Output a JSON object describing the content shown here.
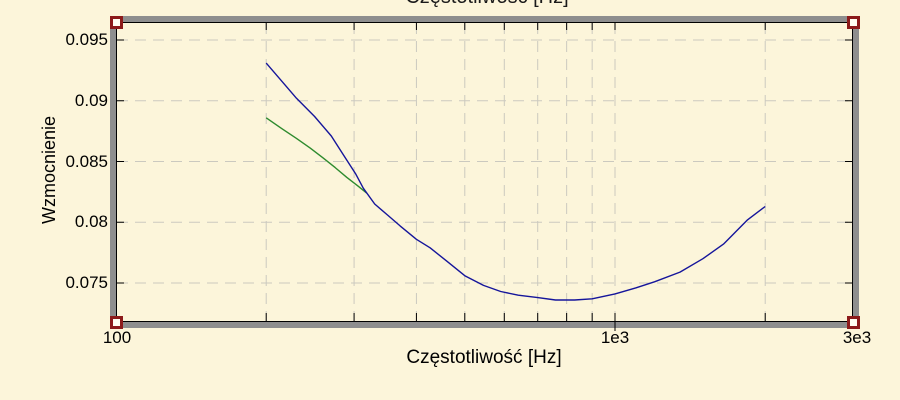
{
  "window": {
    "background_color": "#fcf5da",
    "top_clipped_axis_label": "Częstotliwość [Hz]"
  },
  "colors": {
    "curve_blue": "#15159b",
    "curve_green": "#2e8b2e",
    "gridline": "#cbc9bf",
    "axis": "#000000",
    "frame": "#8e8e8e",
    "handle": "#8c1a1a"
  },
  "chart_data": {
    "type": "line",
    "title": "",
    "xlabel": "Częstotliwość [Hz]",
    "ylabel": "Wzmocnienie",
    "x_scale": "log",
    "xlim": [
      100,
      3000
    ],
    "ylim": [
      0.0718,
      0.0965
    ],
    "grid": "dashed",
    "legend": "none",
    "x_ticks": [
      {
        "value": 100,
        "label": "100"
      },
      {
        "value": 1000,
        "label": "1e3"
      },
      {
        "value": 3000,
        "label": "3e3"
      }
    ],
    "y_ticks": [
      {
        "value": 0.095,
        "label": "0.095"
      },
      {
        "value": 0.09,
        "label": "0.09"
      },
      {
        "value": 0.085,
        "label": "0.085"
      },
      {
        "value": 0.08,
        "label": "0.08"
      },
      {
        "value": 0.075,
        "label": "0.075"
      }
    ],
    "x_gridlines_hz": [
      200,
      300,
      400,
      500,
      600,
      700,
      800,
      900,
      1000,
      2000
    ],
    "y_gridlines": [
      0.095,
      0.09,
      0.085,
      0.08,
      0.075
    ],
    "series": [
      {
        "name": "gain-curve-green",
        "color": "#2e8b2e",
        "x": [
          200,
          215,
          230,
          245,
          260,
          275,
          290,
          305,
          318
        ],
        "y": [
          0.0886,
          0.0877,
          0.0869,
          0.0861,
          0.0853,
          0.0845,
          0.0837,
          0.083,
          0.0824
        ]
      },
      {
        "name": "gain-curve-blue",
        "color": "#15159b",
        "x": [
          200,
          215,
          230,
          250,
          270,
          285,
          302,
          313,
          330,
          350,
          371,
          400,
          426,
          460,
          500,
          545,
          590,
          640,
          700,
          760,
          830,
          900,
          1000,
          1100,
          1200,
          1350,
          1500,
          1650,
          1844,
          2000
        ],
        "y": [
          0.0931,
          0.0916,
          0.0902,
          0.0887,
          0.0871,
          0.0856,
          0.084,
          0.0828,
          0.0815,
          0.0806,
          0.0797,
          0.0786,
          0.0779,
          0.0768,
          0.0756,
          0.0748,
          0.0743,
          0.074,
          0.0738,
          0.0736,
          0.0736,
          0.0737,
          0.0741,
          0.0746,
          0.0751,
          0.0759,
          0.077,
          0.0782,
          0.0802,
          0.0813
        ]
      }
    ]
  }
}
